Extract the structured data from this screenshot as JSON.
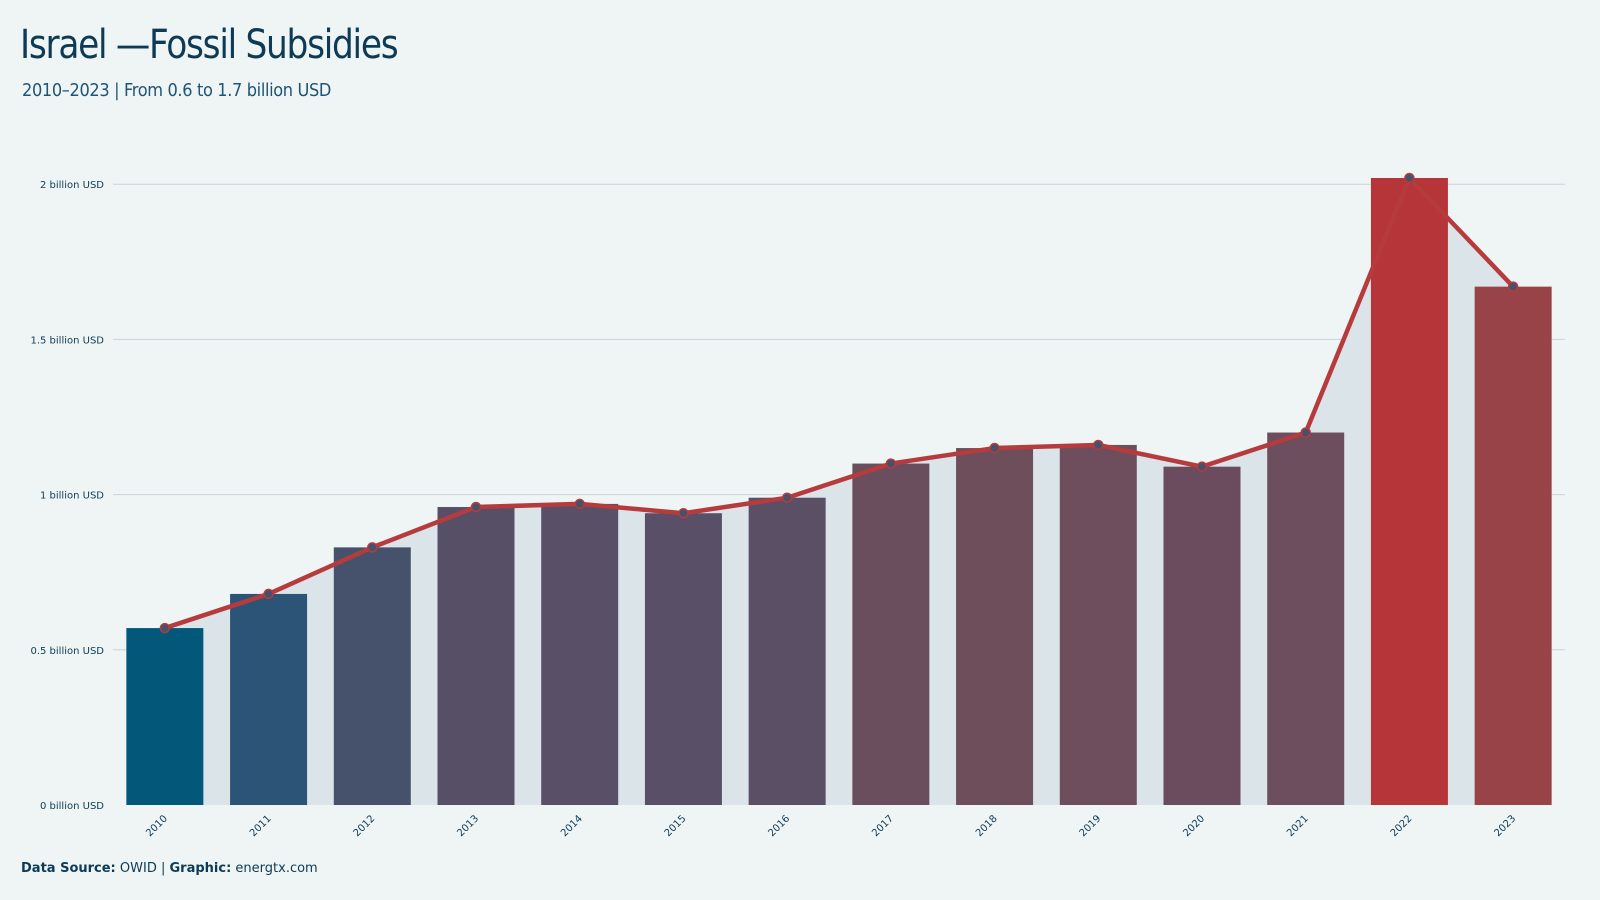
{
  "header": {
    "title": "Israel —Fossil Subsidies",
    "subtitle": "2010–2023 | From 0.6 to 1.7 billion USD"
  },
  "footer": {
    "source_label": "Data Source:",
    "source_value": "OWID",
    "separator": " | ",
    "graphic_label": "Graphic:",
    "graphic_value": "energtx.com"
  },
  "chart_data": {
    "type": "bar",
    "title": "Israel —Fossil Subsidies",
    "subtitle": "2010–2023 | From 0.6 to 1.7 billion USD",
    "xlabel": "",
    "ylabel": "",
    "categories": [
      "2010",
      "2011",
      "2012",
      "2013",
      "2014",
      "2015",
      "2016",
      "2017",
      "2018",
      "2019",
      "2020",
      "2021",
      "2022",
      "2023"
    ],
    "values": [
      0.57,
      0.68,
      0.83,
      0.96,
      0.97,
      0.94,
      0.99,
      1.1,
      1.15,
      1.16,
      1.09,
      1.2,
      2.02,
      1.67
    ],
    "unit": "billion USD",
    "ylim": [
      0,
      2.02
    ],
    "yticks": [
      0,
      0.5,
      1,
      1.5,
      2
    ],
    "ytick_labels": [
      "0 billion USD",
      "0.5 billion USD",
      "1 billion USD",
      "1.5 billion USD",
      "2 billion USD"
    ],
    "overlay_line": true,
    "area_fill": true,
    "grid": "horizontal",
    "bar_colors": [
      "#03587a",
      "#2c5476",
      "#46526c",
      "#574f66",
      "#594f66",
      "#594f66",
      "#5a4f65",
      "#6a4e5e",
      "#6f4e5c",
      "#6e4e5c",
      "#6a4c5e",
      "#6c4e5e",
      "#b63539",
      "#984347"
    ],
    "colors": {
      "line": "#b63b3d",
      "marker": "#46526c",
      "area": "#dbe5e9",
      "grid": "#c9d3d7",
      "text": "#0d3b56"
    }
  }
}
